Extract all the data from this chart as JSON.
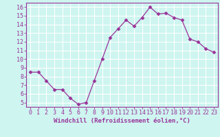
{
  "x": [
    0,
    1,
    2,
    3,
    4,
    5,
    6,
    7,
    8,
    9,
    10,
    11,
    12,
    13,
    14,
    15,
    16,
    17,
    18,
    19,
    20,
    21,
    22,
    23
  ],
  "y": [
    8.5,
    8.5,
    7.5,
    6.5,
    6.5,
    5.5,
    4.8,
    5.0,
    7.5,
    10.0,
    12.5,
    13.5,
    14.5,
    13.8,
    14.8,
    16.0,
    15.2,
    15.3,
    14.8,
    14.5,
    12.3,
    12.0,
    11.2,
    10.8
  ],
  "line_color": "#993399",
  "marker": "D",
  "marker_size": 2.5,
  "bg_color": "#cef5f0",
  "grid_color": "#ffffff",
  "xlabel": "Windchill (Refroidissement éolien,°C)",
  "xlabel_color": "#993399",
  "tick_color": "#993399",
  "ylim": [
    4.5,
    16.5
  ],
  "xlim": [
    -0.5,
    23.5
  ],
  "yticks": [
    5,
    6,
    7,
    8,
    9,
    10,
    11,
    12,
    13,
    14,
    15,
    16
  ],
  "xticks": [
    0,
    1,
    2,
    3,
    4,
    5,
    6,
    7,
    8,
    9,
    10,
    11,
    12,
    13,
    14,
    15,
    16,
    17,
    18,
    19,
    20,
    21,
    22,
    23
  ],
  "xlabel_fontsize": 6.5,
  "tick_fontsize": 6.0
}
